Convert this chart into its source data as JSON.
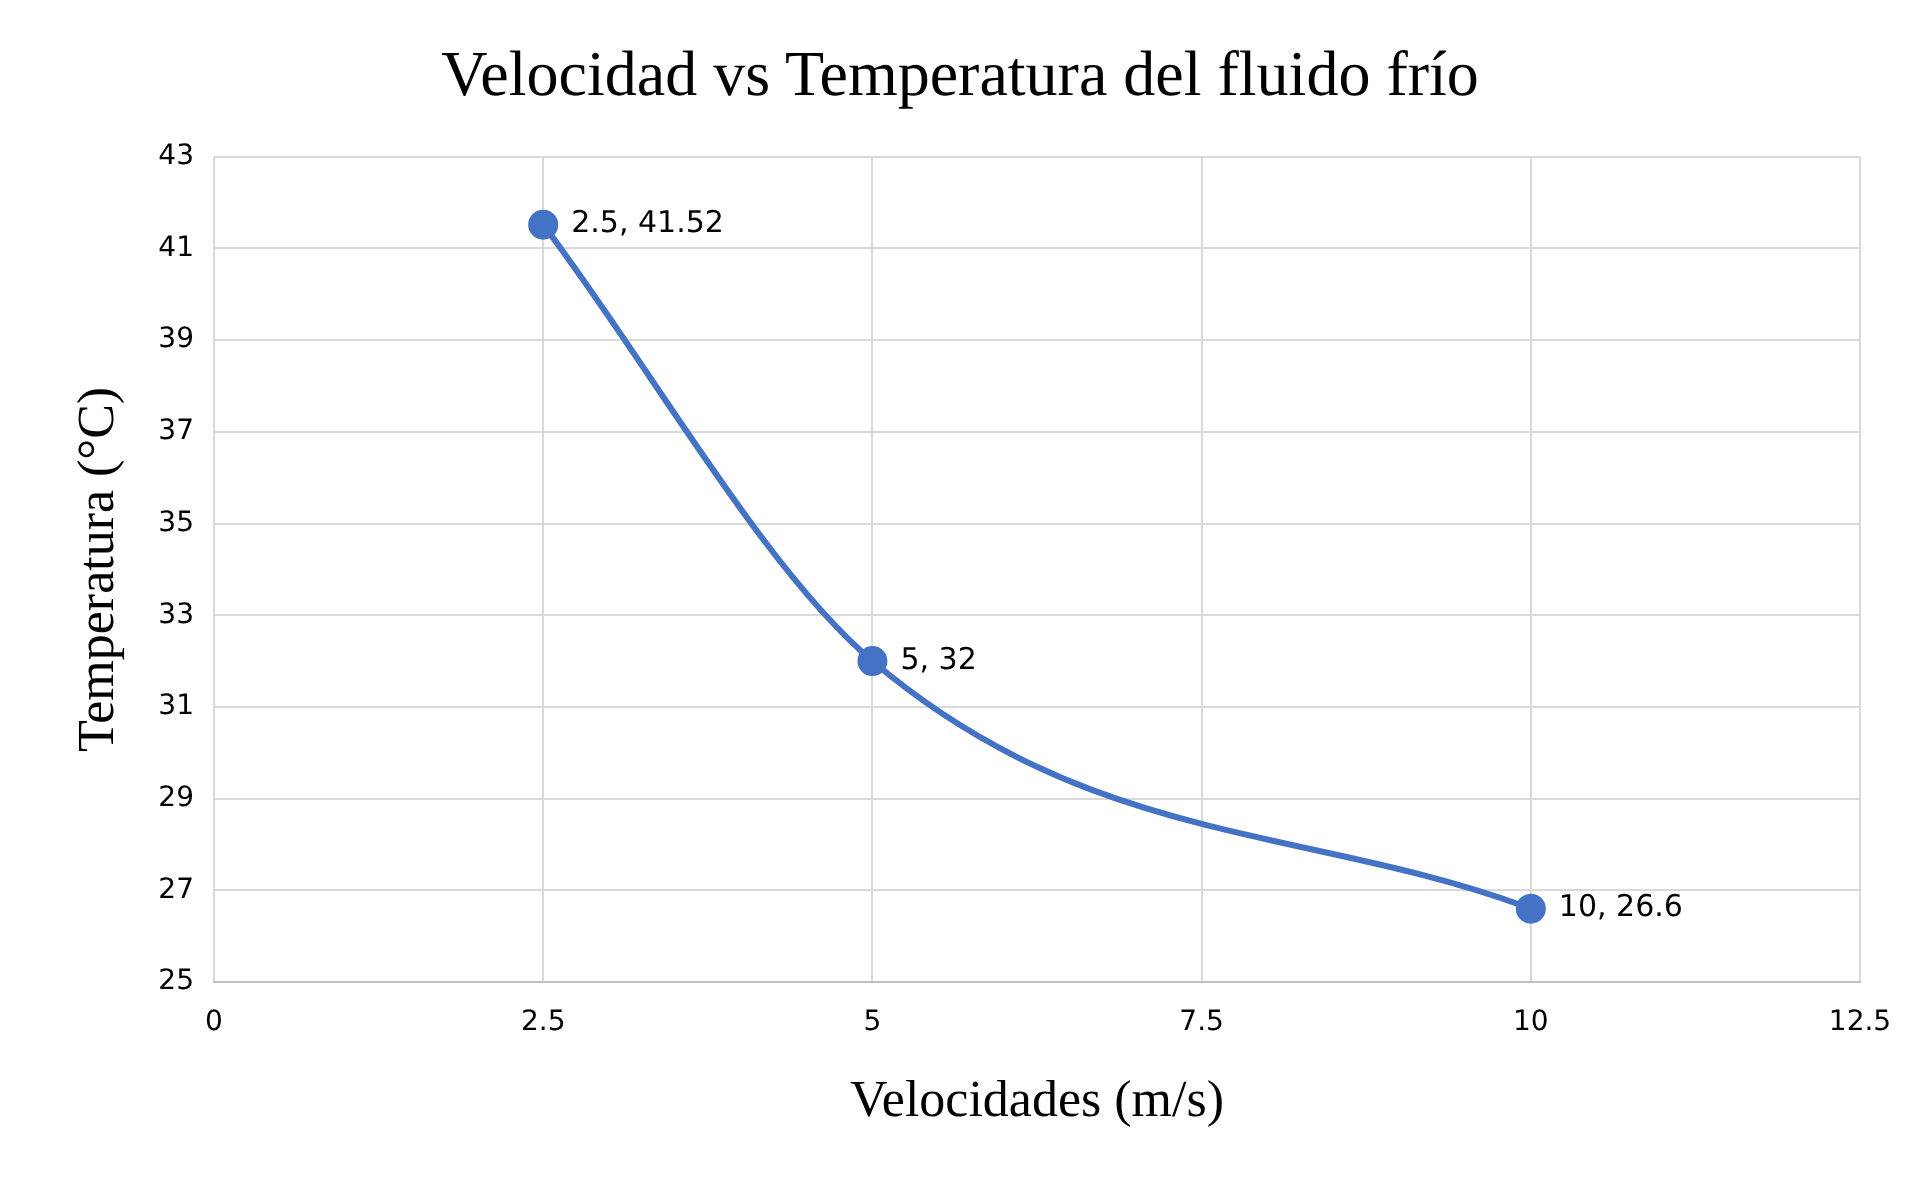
{
  "chart_data": {
    "type": "line",
    "title": "Velocidad vs Temperatura del fluido frío",
    "xlabel": "Velocidades (m/s)",
    "ylabel": "Temperatura (°C)",
    "x": [
      2.5,
      5,
      10
    ],
    "series": [
      {
        "color": "#4472c4",
        "values": [
          41.52,
          32,
          26.6
        ],
        "value_labels": [
          "2.5, 41.52",
          "5, 32",
          "10, 26.6"
        ]
      }
    ],
    "xlim": [
      0,
      12.5
    ],
    "xticks": [
      0,
      2.5,
      5,
      7.5,
      10,
      12.5
    ],
    "ylim": [
      25,
      43
    ],
    "yticks": [
      25,
      27,
      29,
      31,
      33,
      35,
      37,
      39,
      41,
      43
    ],
    "grid": true,
    "legend": false,
    "marker": "circle",
    "line_style": "solid"
  }
}
